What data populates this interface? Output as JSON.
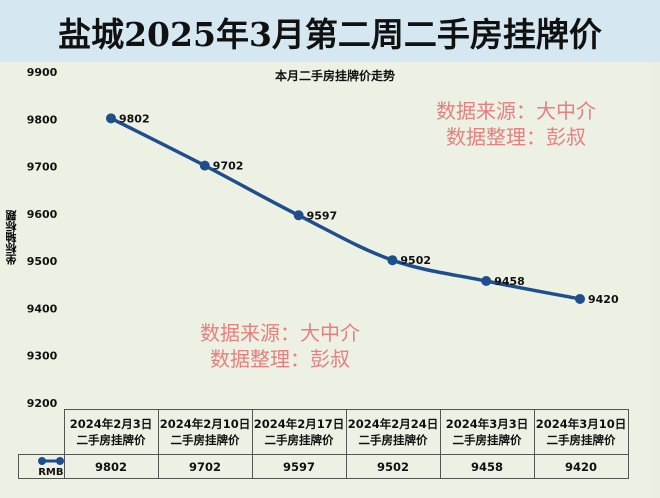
{
  "title": "盐城2025年3月第二周二手房挂牌价",
  "watermark": {
    "line1": "数据来源：大中介",
    "line2": "数据整理：彭叔"
  },
  "chart_data": {
    "type": "line",
    "title": "本月二手房挂牌价走势",
    "ylabel": "坐标轴标题",
    "xlabel": "",
    "ylim": [
      9200,
      9900
    ],
    "yticks": [
      "9900",
      "9800",
      "9700",
      "9600",
      "9500",
      "9400",
      "9300",
      "9200"
    ],
    "categories": [
      "2024年2月3日二手房挂牌价",
      "2024年2月10日二手房挂牌价",
      "2024年2月17日二手房挂牌价",
      "2024年2月24日二手房挂牌价",
      "2024年3月3日二手房挂牌价",
      "2024年3月10日二手房挂牌价"
    ],
    "series": [
      {
        "name": "RMB",
        "values": [
          9802,
          9702,
          9597,
          9502,
          9458,
          9420
        ],
        "color": "#1f4e8c"
      }
    ],
    "data_labels": [
      "9802",
      "9702",
      "9597",
      "9502",
      "9458",
      "9420"
    ],
    "grid": false,
    "legend": "data-table"
  }
}
